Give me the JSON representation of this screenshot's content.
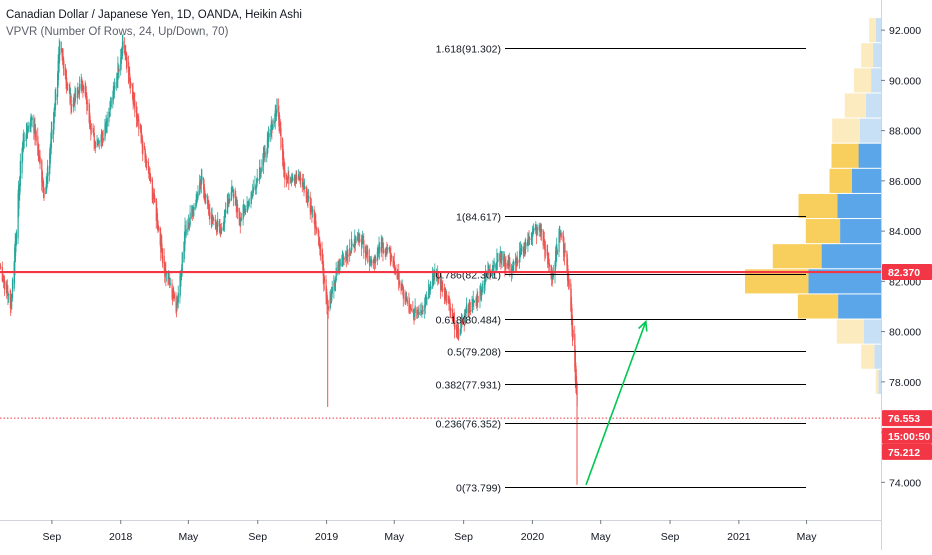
{
  "legend": {
    "title": "Canadian Dollar / Japanese Yen, 1D, OANDA, Heikin Ashi",
    "indicator": "VPVR (Number Of Rows, 24, Up/Down, 70)"
  },
  "colors": {
    "up": "#26a69a",
    "down": "#ef5350",
    "fib_line": "#000000",
    "horizontal_line": "#f23645",
    "arrow": "#00c853",
    "vpvr_up": "#5ba6e8",
    "vpvr_down": "#f8cf5c",
    "vpvr_up_light": "#c8e0f5",
    "vpvr_down_light": "#fcebbf",
    "price_badge": "#f23645"
  },
  "chart_data": {
    "type": "candlestick",
    "title": "Canadian Dollar / Japanese Yen, 1D, OANDA, Heikin Ashi",
    "y_axis": {
      "range": [
        72.5,
        93.2
      ],
      "ticks": [
        "74.000",
        "76.000",
        "78.000",
        "80.000",
        "82.000",
        "84.000",
        "86.000",
        "88.000",
        "90.000",
        "92.000"
      ],
      "position": "right"
    },
    "x_axis": {
      "range": [
        "2017-06-01",
        "2021-09-10"
      ],
      "ticks": [
        {
          "label": "Sep",
          "date": "2017-09-01"
        },
        {
          "label": "2018",
          "date": "2018-01-01"
        },
        {
          "label": "May",
          "date": "2018-05-01"
        },
        {
          "label": "Sep",
          "date": "2018-09-01"
        },
        {
          "label": "2019",
          "date": "2019-01-01"
        },
        {
          "label": "May",
          "date": "2019-05-01"
        },
        {
          "label": "Sep",
          "date": "2019-09-01"
        },
        {
          "label": "2020",
          "date": "2020-01-01"
        },
        {
          "label": "May",
          "date": "2020-05-01"
        },
        {
          "label": "Sep",
          "date": "2020-09-01"
        },
        {
          "label": "2021",
          "date": "2021-01-01"
        },
        {
          "label": "May",
          "date": "2021-05-01"
        }
      ]
    },
    "price_path": [
      [
        "2017-06-01",
        82.6
      ],
      [
        "2017-06-20",
        81.0
      ],
      [
        "2017-07-10",
        87.5
      ],
      [
        "2017-07-28",
        88.6
      ],
      [
        "2017-08-20",
        85.3
      ],
      [
        "2017-09-15",
        91.3
      ],
      [
        "2017-10-05",
        89.0
      ],
      [
        "2017-10-25",
        89.9
      ],
      [
        "2017-11-15",
        87.5
      ],
      [
        "2017-12-01",
        87.9
      ],
      [
        "2017-12-20",
        89.6
      ],
      [
        "2018-01-05",
        91.6
      ],
      [
        "2018-01-20",
        89.4
      ],
      [
        "2018-02-10",
        87.2
      ],
      [
        "2018-03-01",
        85.2
      ],
      [
        "2018-03-20",
        82.4
      ],
      [
        "2018-04-10",
        81.0
      ],
      [
        "2018-04-25",
        84.0
      ],
      [
        "2018-05-10",
        85.0
      ],
      [
        "2018-05-25",
        86.0
      ],
      [
        "2018-06-10",
        84.4
      ],
      [
        "2018-06-28",
        84.0
      ],
      [
        "2018-07-15",
        85.7
      ],
      [
        "2018-08-01",
        84.5
      ],
      [
        "2018-08-20",
        85.4
      ],
      [
        "2018-09-15",
        87.2
      ],
      [
        "2018-10-05",
        89.0
      ],
      [
        "2018-10-20",
        86.0
      ],
      [
        "2018-11-05",
        86.3
      ],
      [
        "2018-11-20",
        85.8
      ],
      [
        "2018-12-05",
        84.9
      ],
      [
        "2018-12-20",
        83.5
      ],
      [
        "2019-01-03",
        80.8
      ],
      [
        "2019-01-20",
        82.5
      ],
      [
        "2019-02-10",
        83.3
      ],
      [
        "2019-03-01",
        83.8
      ],
      [
        "2019-03-20",
        82.8
      ],
      [
        "2019-04-10",
        83.4
      ],
      [
        "2019-04-25",
        83.0
      ],
      [
        "2019-05-15",
        81.6
      ],
      [
        "2019-06-01",
        80.6
      ],
      [
        "2019-06-20",
        81.0
      ],
      [
        "2019-07-10",
        82.4
      ],
      [
        "2019-08-01",
        81.4
      ],
      [
        "2019-08-20",
        79.8
      ],
      [
        "2019-09-05",
        80.8
      ],
      [
        "2019-09-25",
        81.3
      ],
      [
        "2019-10-15",
        82.5
      ],
      [
        "2019-11-05",
        83.0
      ],
      [
        "2019-11-25",
        82.5
      ],
      [
        "2019-12-10",
        83.0
      ],
      [
        "2019-12-28",
        83.9
      ],
      [
        "2020-01-15",
        84.1
      ],
      [
        "2020-01-25",
        83.0
      ],
      [
        "2020-02-05",
        82.1
      ],
      [
        "2020-02-20",
        84.2
      ],
      [
        "2020-03-05",
        82.0
      ],
      [
        "2020-03-15",
        79.0
      ],
      [
        "2020-03-20",
        77.0
      ]
    ],
    "fibonacci": [
      {
        "label": "1.618(91.302)",
        "value": 91.302
      },
      {
        "label": "1(84.617)",
        "value": 84.617
      },
      {
        "label": "0.786(82.301)",
        "value": 82.301
      },
      {
        "label": "0.618(80.484)",
        "value": 80.484
      },
      {
        "label": "0.5(79.208)",
        "value": 79.208
      },
      {
        "label": "0.382(77.931)",
        "value": 77.931
      },
      {
        "label": "0.236(76.352)",
        "value": 76.352
      },
      {
        "label": "0(73.799)",
        "value": 73.799
      }
    ],
    "horizontal_line": {
      "value": 82.37,
      "label": "82.370"
    },
    "price_labels": [
      {
        "text": "76.553",
        "value": 76.553
      },
      {
        "text": "15:00:50",
        "value": 75.85
      },
      {
        "text": "75.212",
        "value": 75.212
      }
    ],
    "dotted_line": {
      "value": 76.553
    },
    "arrow": {
      "from": [
        "2020-04-05",
        73.9
      ],
      "to": [
        "2020-07-20",
        80.4
      ]
    },
    "vpvr": {
      "rows": [
        {
          "price": 92.0,
          "up": 0.8,
          "down": 1.0
        },
        {
          "price": 91.0,
          "up": 1.2,
          "down": 1.8
        },
        {
          "price": 90.0,
          "up": 1.5,
          "down": 2.6
        },
        {
          "price": 89.0,
          "up": 2.3,
          "down": 3.2
        },
        {
          "price": 88.0,
          "up": 3.2,
          "down": 4.2
        },
        {
          "price": 87.0,
          "up": 3.4,
          "down": 4.1
        },
        {
          "price": 86.0,
          "up": 4.4,
          "down": 3.4
        },
        {
          "price": 85.0,
          "up": 6.6,
          "down": 5.9
        },
        {
          "price": 84.0,
          "up": 6.2,
          "down": 5.2
        },
        {
          "price": 83.0,
          "up": 9.0,
          "down": 7.4
        },
        {
          "price": 82.0,
          "up": 11.0,
          "down": 9.6
        },
        {
          "price": 81.0,
          "up": 6.5,
          "down": 6.1
        },
        {
          "price": 80.0,
          "up": 2.6,
          "down": 4.1
        },
        {
          "price": 79.0,
          "up": 1.0,
          "down": 2.0
        },
        {
          "price": 78.0,
          "up": 0.4,
          "down": 0.4
        }
      ]
    }
  }
}
